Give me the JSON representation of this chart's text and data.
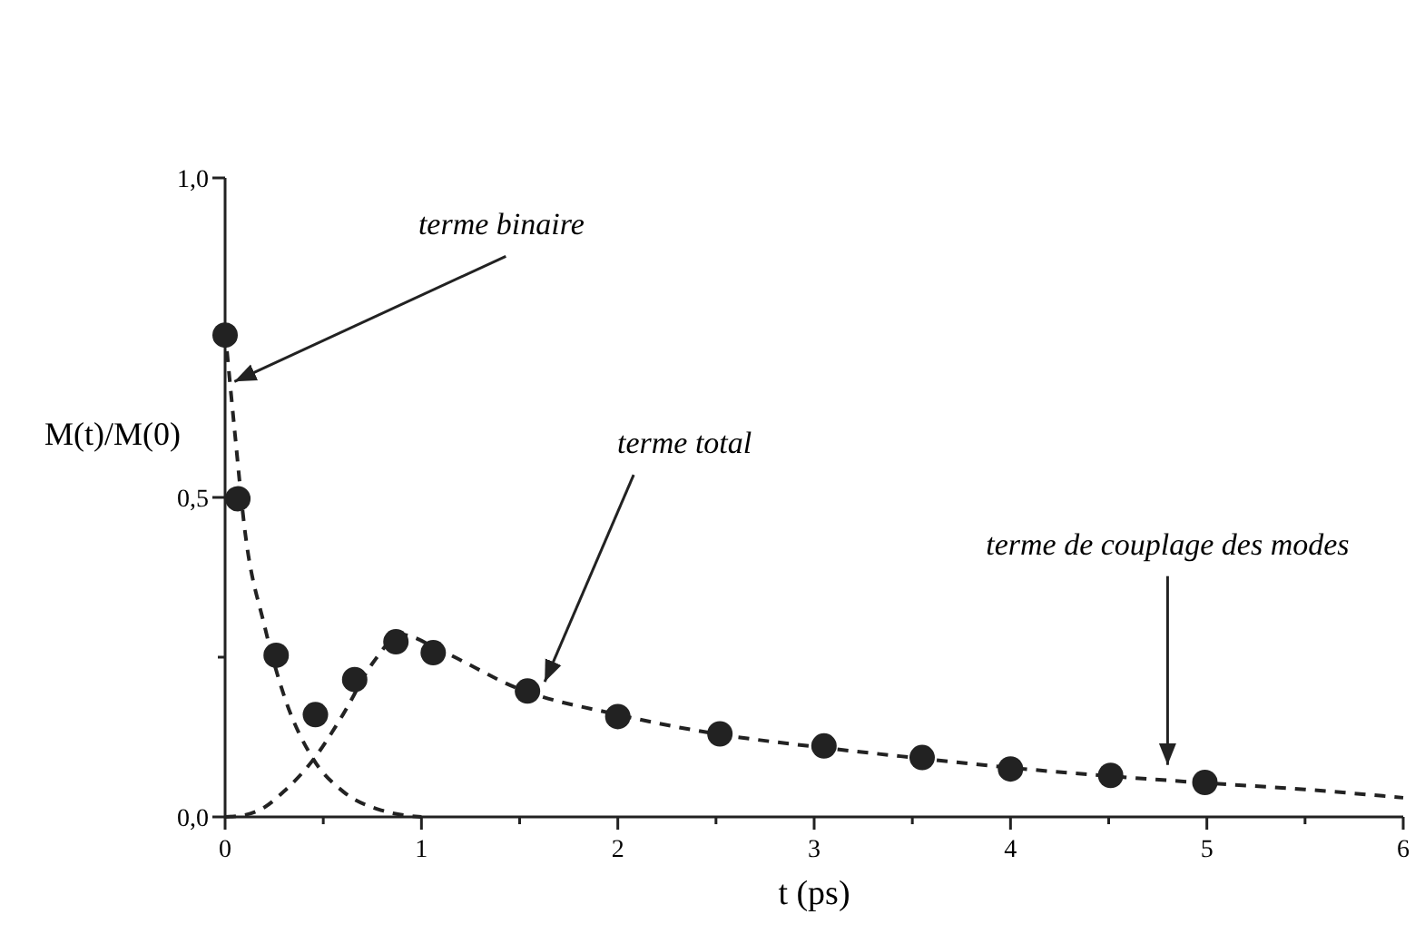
{
  "chart_data": {
    "type": "line",
    "xlabel": "t (ps)",
    "ylabel": "M(t)/M(0)",
    "xlim": [
      0,
      6
    ],
    "ylim": [
      0,
      1
    ],
    "xticks": [
      0,
      {
        "value": 0.5,
        "label": null
      },
      1,
      {
        "value": 1.5,
        "label": null
      },
      2,
      {
        "value": 2.5,
        "label": null
      },
      3,
      {
        "value": 3.5,
        "label": null
      },
      4,
      {
        "value": 4.5,
        "label": null
      },
      5,
      {
        "value": 5.5,
        "label": null
      },
      6
    ],
    "yticks": [
      {
        "value": 0,
        "label": "0,0"
      },
      {
        "value": 0.25,
        "label": null
      },
      {
        "value": 0.5,
        "label": "0,5"
      },
      {
        "value": 0.75,
        "label": null
      },
      {
        "value": 1,
        "label": "1,0"
      }
    ],
    "grid": false,
    "series": [
      {
        "color": "#222222",
        "line_style": "dashed",
        "marker": "none",
        "x": [
          0,
          0.05,
          0.1,
          0.2,
          0.3,
          0.45,
          0.6,
          0.8,
          1.0
        ],
        "values": [
          0.76,
          0.6,
          0.45,
          0.3,
          0.19,
          0.09,
          0.04,
          0.01,
          0.0
        ]
      },
      {
        "color": "#222222",
        "line_style": "dashed",
        "marker": "none",
        "x": [
          0,
          0.1,
          0.2,
          0.3,
          0.45,
          0.6,
          0.75,
          0.9,
          1.1,
          1.5,
          2,
          2.5,
          3,
          3.5,
          4,
          4.5,
          5,
          5.5,
          6
        ],
        "values": [
          0,
          0.003,
          0.015,
          0.04,
          0.09,
          0.16,
          0.24,
          0.285,
          0.26,
          0.2,
          0.16,
          0.13,
          0.11,
          0.093,
          0.077,
          0.064,
          0.053,
          0.043,
          0.03
        ]
      },
      {
        "type": "scatter",
        "color": "#222222",
        "marker": "circle",
        "x": [
          0,
          0.065,
          0.26,
          0.46,
          0.66,
          0.87,
          1.06,
          1.54,
          2.0,
          2.52,
          3.05,
          3.55,
          4.0,
          4.51,
          4.99
        ],
        "values": [
          0.754,
          0.498,
          0.253,
          0.16,
          0.215,
          0.274,
          0.257,
          0.197,
          0.157,
          0.13,
          0.111,
          0.093,
          0.075,
          0.065,
          0.054
        ]
      }
    ],
    "annotations": [
      {
        "text": "terme binaire",
        "x": 0.02,
        "y": 0.67
      },
      {
        "text": "terme total",
        "x": 1.6,
        "y": 0.2
      },
      {
        "text": "terme de couplage des modes",
        "x": 4.8,
        "y": 0.07
      }
    ]
  }
}
